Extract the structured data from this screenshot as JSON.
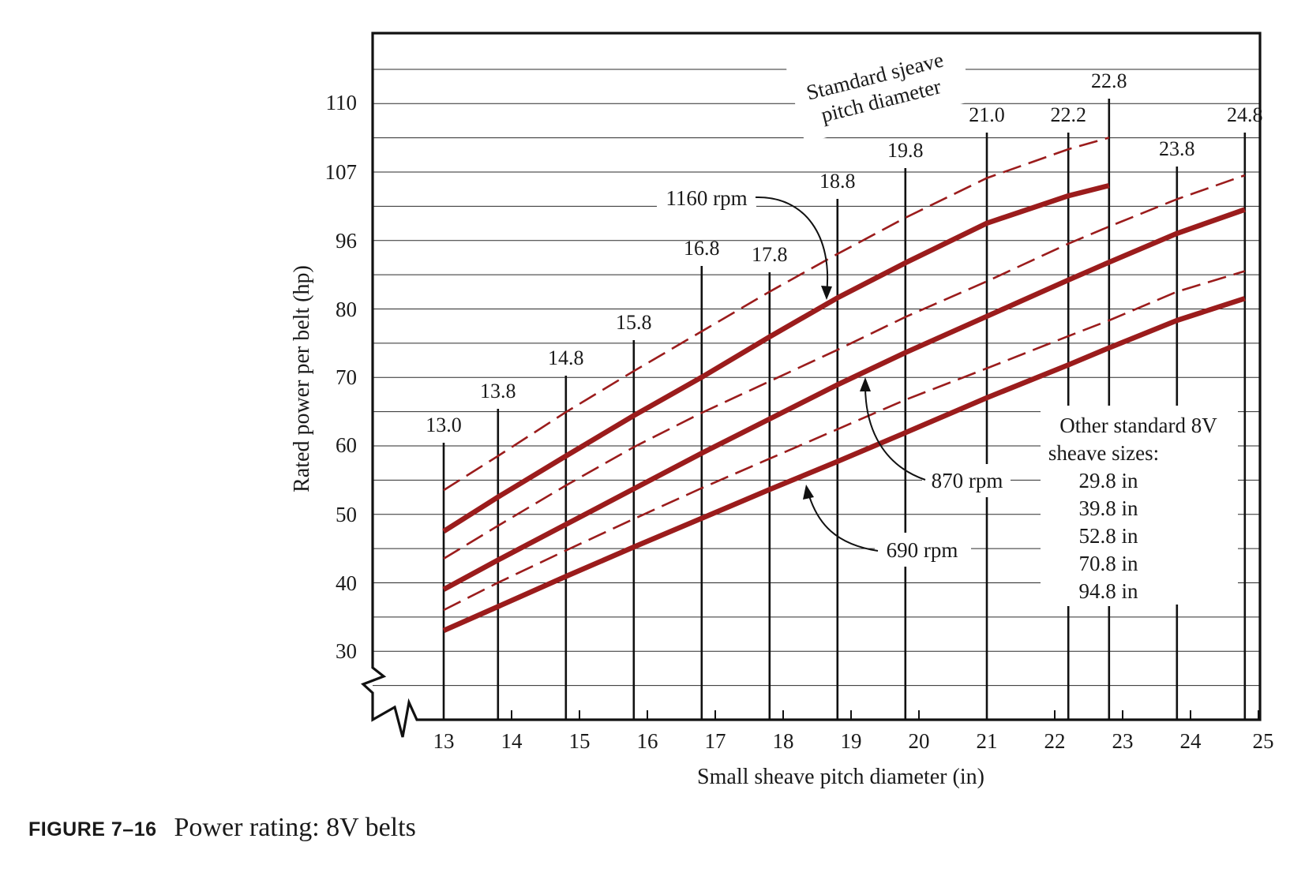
{
  "chart_data": {
    "type": "line",
    "xlabel": "Small sheave pitch diameter (in)",
    "ylabel": "Rated power per belt (hp)",
    "xlim": [
      12.2,
      25.1
    ],
    "x_ticks": [
      13,
      14,
      15,
      16,
      17,
      18,
      19,
      20,
      21,
      22,
      23,
      24,
      25
    ],
    "y_tick_labels": [
      "30",
      "40",
      "50",
      "60",
      "70",
      "80",
      "96",
      "107",
      "110"
    ],
    "grid": "horizontal",
    "axis_break": true,
    "standard_sheave_title": [
      "Stamdard sjeave",
      "pitch diameter"
    ],
    "standard_sheaves": [
      {
        "x": 13.0,
        "label": "13.0"
      },
      {
        "x": 13.8,
        "label": "13.8"
      },
      {
        "x": 14.8,
        "label": "14.8"
      },
      {
        "x": 15.8,
        "label": "15.8"
      },
      {
        "x": 16.8,
        "label": "16.8"
      },
      {
        "x": 17.8,
        "label": "17.8"
      },
      {
        "x": 18.8,
        "label": "18.8"
      },
      {
        "x": 19.8,
        "label": "19.8"
      },
      {
        "x": 21.0,
        "label": "21.0"
      },
      {
        "x": 22.2,
        "label": "22.2"
      },
      {
        "x": 22.8,
        "label": "22.8"
      },
      {
        "x": 23.8,
        "label": "23.8"
      },
      {
        "x": 24.8,
        "label": "24.8"
      }
    ],
    "series": [
      {
        "name": "1160 rpm",
        "style": "solid",
        "color": "#9b1c1c",
        "x": [
          13.0,
          13.8,
          14.8,
          15.8,
          16.8,
          17.8,
          18.8,
          19.8,
          21.0,
          22.2,
          22.8
        ],
        "y": [
          47.5,
          52.5,
          58.5,
          64.4,
          70.0,
          75.9,
          81.6,
          86.7,
          92.5,
          96.5,
          98.0
        ]
      },
      {
        "name": "",
        "style": "dashed",
        "color": "#9b1c1c",
        "x": [
          13.0,
          13.8,
          14.8,
          15.8,
          16.8,
          17.8,
          18.8,
          19.8,
          21.0,
          22.2,
          22.8
        ],
        "y": [
          53.5,
          58.5,
          64.9,
          70.9,
          76.7,
          82.5,
          88.0,
          93.3,
          99.1,
          103.3,
          105.0
        ]
      },
      {
        "name": "870 rpm",
        "style": "solid",
        "color": "#9b1c1c",
        "x": [
          13.0,
          13.8,
          14.8,
          15.8,
          16.8,
          17.8,
          18.8,
          19.8,
          21.0,
          22.2,
          22.8,
          23.8,
          24.8
        ],
        "y": [
          39.0,
          43.3,
          48.5,
          53.7,
          58.9,
          63.9,
          68.9,
          73.6,
          78.9,
          84.2,
          86.8,
          91.0,
          94.5
        ]
      },
      {
        "name": "",
        "style": "dashed",
        "color": "#9b1c1c",
        "x": [
          13.0,
          13.8,
          14.8,
          15.8,
          16.8,
          17.8,
          18.8,
          19.8,
          21.0,
          22.2,
          22.8,
          23.8,
          24.8
        ],
        "y": [
          43.5,
          48.3,
          54.2,
          59.8,
          64.8,
          69.4,
          74.0,
          78.8,
          84.0,
          89.5,
          92.0,
          96.0,
          99.5
        ]
      },
      {
        "name": "690 rpm",
        "style": "solid",
        "color": "#9b1c1c",
        "x": [
          13.0,
          13.8,
          14.8,
          15.8,
          16.8,
          17.8,
          18.8,
          19.8,
          21.0,
          22.2,
          22.8,
          23.8,
          24.8
        ],
        "y": [
          33.0,
          36.5,
          40.9,
          45.2,
          49.4,
          53.6,
          57.7,
          61.9,
          67.0,
          71.8,
          74.3,
          78.3,
          81.5
        ]
      },
      {
        "name": "",
        "style": "dashed",
        "color": "#9b1c1c",
        "x": [
          13.0,
          13.8,
          14.8,
          15.8,
          16.8,
          17.8,
          18.8,
          19.8,
          21.0,
          22.2,
          22.8,
          23.8,
          24.8
        ],
        "y": [
          36.0,
          40.0,
          44.7,
          49.3,
          53.8,
          58.1,
          62.4,
          66.7,
          71.3,
          76.0,
          78.3,
          82.5,
          85.5
        ]
      }
    ],
    "annotations": {
      "rpm_1160": "1160 rpm",
      "rpm_870": "870 rpm",
      "rpm_690": "690 rpm",
      "other_sizes_title": [
        "Other standard 8V",
        "sheave sizes:"
      ],
      "other_sizes": [
        "29.8 in",
        "39.8 in",
        "52.8 in",
        "70.8 in",
        "94.8 in"
      ]
    }
  },
  "caption": {
    "label": "FIGURE 7–16",
    "text": "Power rating: 8V belts"
  }
}
